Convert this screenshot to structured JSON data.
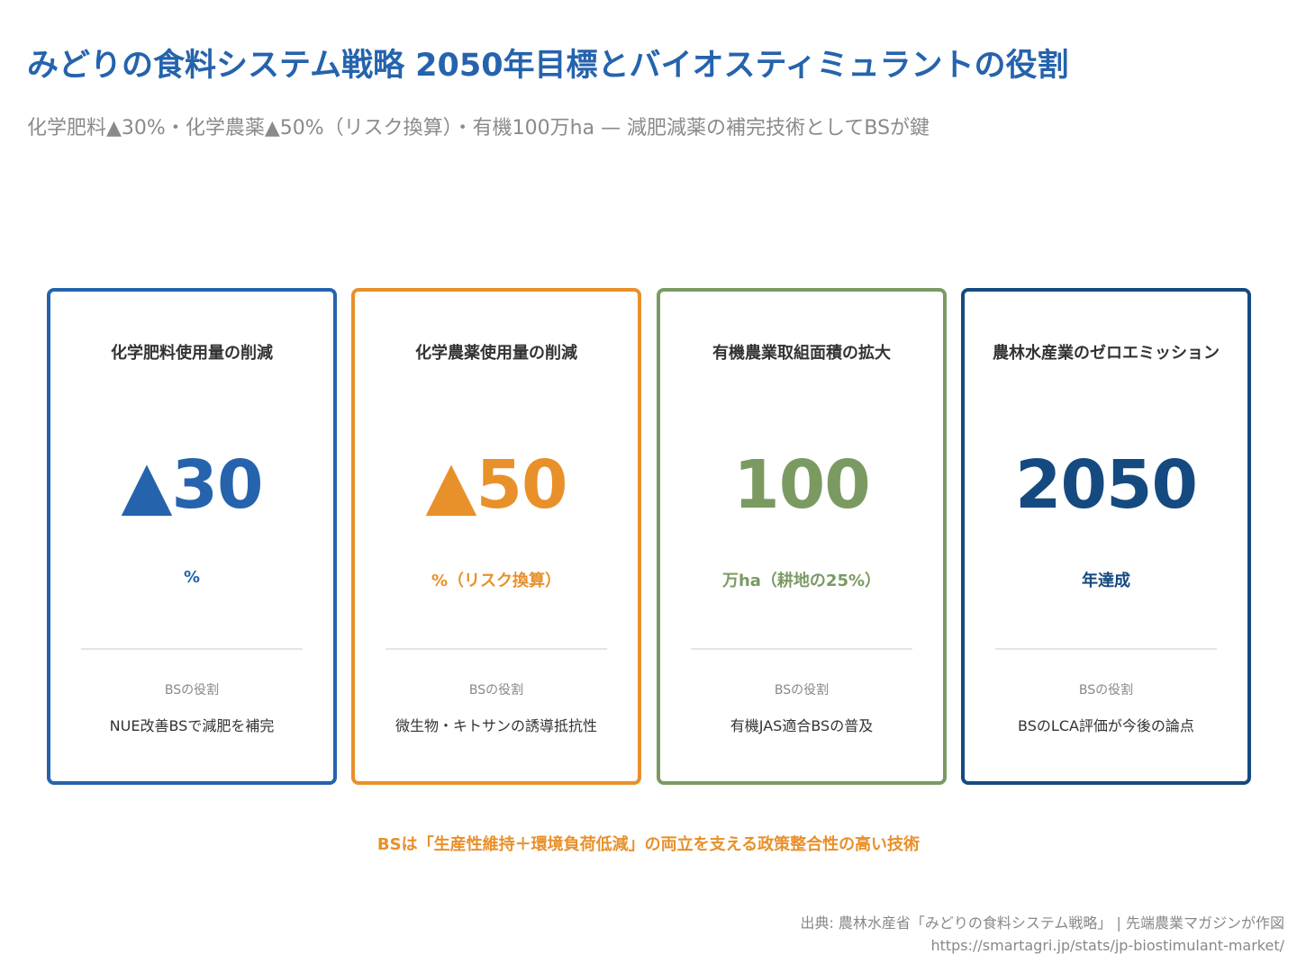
{
  "header": {
    "title": "みどりの食料システム戦略 2050年目標とバイオスティミュラントの役割",
    "subtitle": "化学肥料▲30%・化学農薬▲50%（リスク換算）・有機100万ha — 減肥減薬の補完技術としてBSが鍵"
  },
  "cards": [
    {
      "title": "化学肥料使用量の削減",
      "value": "▲30",
      "unit": "%",
      "role_label": "BSの役割",
      "role": "NUE改善BSで減肥を補完",
      "color": "#2563ad"
    },
    {
      "title": "化学農薬使用量の削減",
      "value": "▲50",
      "unit": "%（リスク換算）",
      "role_label": "BSの役割",
      "role": "微生物・キトサンの誘導抵抗性",
      "color": "#e8902a"
    },
    {
      "title": "有機農業取組面積の拡大",
      "value": "100",
      "unit": "万ha（耕地の25%）",
      "role_label": "BSの役割",
      "role": "有機JAS適合BSの普及",
      "color": "#7a9a62"
    },
    {
      "title": "農林水産業のゼロエミッション",
      "value": "2050",
      "unit": "年達成",
      "role_label": "BSの役割",
      "role": "BSのLCA評価が今後の論点",
      "color": "#154a80"
    }
  ],
  "footnote": "BSは「生産性維持＋環境負荷低減」の両立を支える政策整合性の高い技術",
  "source": {
    "line1": "出典: 農林水産省「みどりの食料システム戦略」 | 先端農業マガジンが作図",
    "line2": "https://smartagri.jp/stats/jp-biostimulant-market/"
  }
}
